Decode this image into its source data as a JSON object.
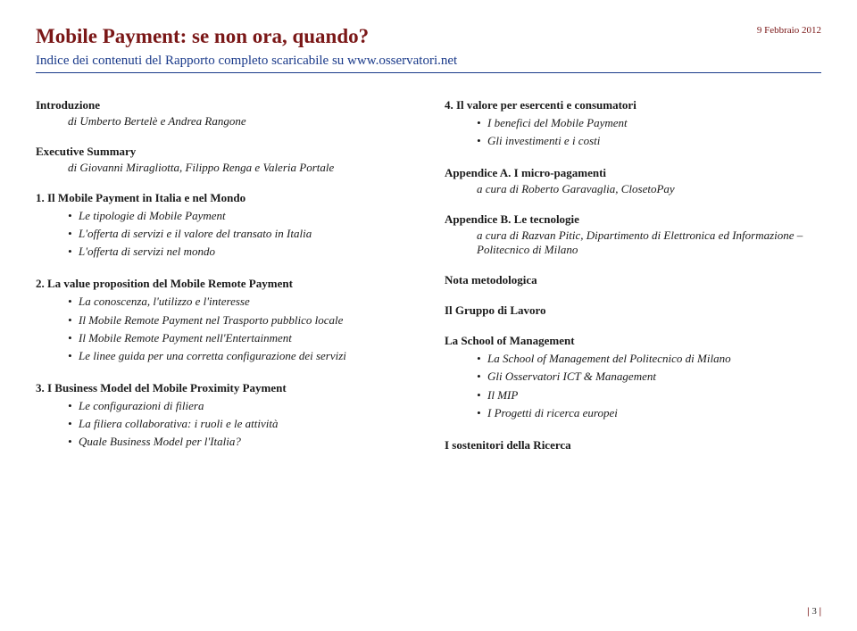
{
  "header": {
    "title": "Mobile Payment: se non ora, quando?",
    "date": "9 Febbraio 2012",
    "subtitle": "Indice dei contenuti del Rapporto completo scaricabile su www.osservatori.net"
  },
  "left": {
    "intro": {
      "head": "Introduzione",
      "sub": "di Umberto Bertelè e Andrea Rangone"
    },
    "exec": {
      "head": "Executive Summary",
      "sub": "di Giovanni Miragliotta, Filippo Renga e Valeria Portale"
    },
    "s1": {
      "head": "1. Il Mobile Payment in Italia e nel Mondo",
      "items": [
        "Le tipologie di Mobile Payment",
        "L'offerta di servizi e il valore del transato in Italia",
        "L'offerta di servizi nel mondo"
      ]
    },
    "s2": {
      "head": "2. La value proposition del Mobile Remote Payment",
      "items": [
        "La conoscenza, l'utilizzo e l'interesse",
        "Il Mobile Remote Payment nel Trasporto pubblico locale",
        "Il Mobile Remote Payment nell'Entertainment",
        "Le linee guida per una corretta configurazione dei servizi"
      ]
    },
    "s3": {
      "head": "3. I Business Model del Mobile Proximity Payment",
      "items": [
        "Le configurazioni di filiera",
        "La filiera collaborativa: i ruoli e le attività",
        "Quale Business Model per l'Italia?"
      ]
    }
  },
  "right": {
    "s4": {
      "head": "4. Il valore per esercenti e consumatori",
      "items": [
        "I benefici del Mobile Payment",
        "Gli investimenti e i costi"
      ]
    },
    "appA": {
      "head": "Appendice A. I micro-pagamenti",
      "sub": "a cura di Roberto Garavaglia, ClosetoPay"
    },
    "appB": {
      "head": "Appendice B. Le tecnologie",
      "sub": "a cura di Razvan Pitic, Dipartimento di Elettronica ed Informazione – Politecnico di Milano"
    },
    "nota": {
      "head": "Nota metodologica"
    },
    "gruppo": {
      "head": "Il Gruppo di Lavoro"
    },
    "school": {
      "head": "La School of Management",
      "items": [
        "La School of Management del Politecnico di Milano",
        "Gli Osservatori ICT & Management",
        "Il MIP",
        "I Progetti di ricerca europei"
      ]
    },
    "sost": {
      "head": "I sostenitori della Ricerca"
    }
  },
  "page": "3"
}
